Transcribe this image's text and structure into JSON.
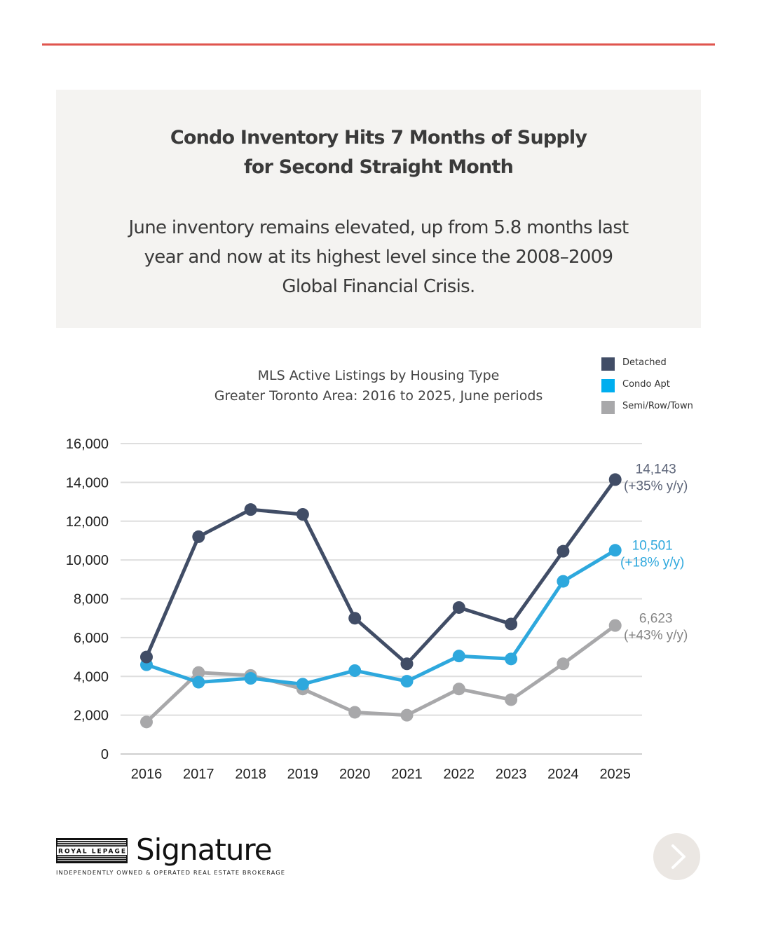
{
  "header": {
    "headline_line1": "Condo Inventory Hits 7 Months of Supply",
    "headline_line2": "for Second Straight Month",
    "subhead_line1": "June inventory remains elevated, up from 5.8 months last",
    "subhead_line2": "year and now at its highest level since the 2008–2009",
    "subhead_line3": "Global Financial Crisis."
  },
  "chart_data": {
    "type": "line",
    "title": "MLS Active Listings by Housing Type",
    "subtitle": "Greater Toronto Area: 2016 to 2025, June periods",
    "x": [
      "2016",
      "2017",
      "2018",
      "2019",
      "2020",
      "2021",
      "2022",
      "2023",
      "2024",
      "2025"
    ],
    "ylim": [
      0,
      16000
    ],
    "yticks": [
      0,
      2000,
      4000,
      6000,
      8000,
      10000,
      12000,
      14000,
      16000
    ],
    "ytick_labels": [
      "0",
      "2,000",
      "4,000",
      "6,000",
      "8,000",
      "10,000",
      "12,000",
      "14,000",
      "16,000"
    ],
    "grid": true,
    "legend_position": "top-right",
    "series": [
      {
        "name": "Detached",
        "color": "#414d66",
        "values": [
          5000,
          11200,
          12600,
          12350,
          7000,
          4650,
          7550,
          6700,
          10450,
          14143
        ],
        "end_value_label": "14,143",
        "end_change_label": "(+35% y/y)"
      },
      {
        "name": "Condo Apt",
        "color": "#2ea8dd",
        "values": [
          4600,
          3700,
          3900,
          3600,
          4300,
          3750,
          5050,
          4900,
          8900,
          10501
        ],
        "end_value_label": "10,501",
        "end_change_label": "(+18% y/y)"
      },
      {
        "name": "Semi/Row/Town",
        "color": "#a8a8aa",
        "values": [
          1650,
          4200,
          4050,
          3350,
          2150,
          2000,
          3350,
          2800,
          4650,
          6623
        ],
        "end_value_label": "6,623",
        "end_change_label": "(+43% y/y)"
      }
    ]
  },
  "legend": {
    "items": [
      {
        "label": "Detached",
        "color": "#414d66"
      },
      {
        "label": "Condo Apt",
        "color": "#00aeef"
      },
      {
        "label": "Semi/Row/Town",
        "color": "#a8a8aa"
      }
    ]
  },
  "footer": {
    "logo_brand": "ROYAL LEPAGE",
    "logo_word": "Signature",
    "logo_tagline": "INDEPENDENTLY OWNED & OPERATED REAL ESTATE BROKERAGE",
    "next_icon": "chevron-right-icon"
  },
  "colors": {
    "accent_rule": "#e0554e",
    "header_background": "#f4f3f1"
  }
}
